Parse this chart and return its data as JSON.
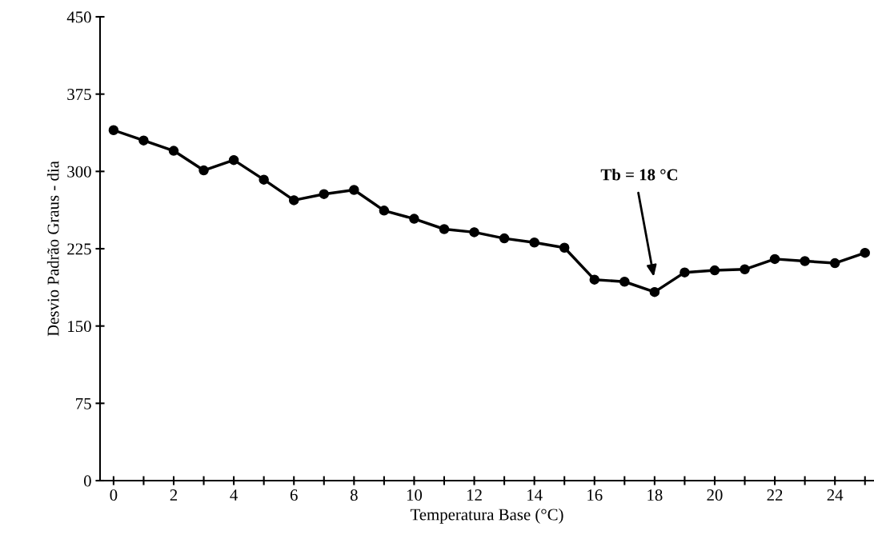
{
  "chart_data": {
    "type": "line",
    "xlabel": "Temperatura Base (°C)",
    "ylabel": "Desvio Padrão Graus - dia",
    "x": [
      0,
      1,
      2,
      3,
      4,
      5,
      6,
      7,
      8,
      9,
      10,
      11,
      12,
      13,
      14,
      15,
      16,
      17,
      18,
      19,
      20,
      21,
      22,
      23,
      24,
      25
    ],
    "series": [
      {
        "color": "#000000",
        "values": [
          340,
          330,
          320,
          301,
          311,
          292,
          272,
          278,
          282,
          262,
          254,
          244,
          241,
          235,
          231,
          226,
          195,
          193,
          183,
          202,
          204,
          205,
          215,
          213,
          211,
          221
        ]
      }
    ],
    "marker": "circle",
    "line_style": "solid",
    "grid": false,
    "legend": false,
    "xlim": [
      -0.45,
      25.3
    ],
    "xticks": [
      0,
      {
        "value": 1,
        "label": null
      },
      2,
      {
        "value": 3,
        "label": null
      },
      4,
      {
        "value": 5,
        "label": null
      },
      6,
      {
        "value": 7,
        "label": null
      },
      8,
      {
        "value": 9,
        "label": null
      },
      10,
      {
        "value": 11,
        "label": null
      },
      12,
      {
        "value": 13,
        "label": null
      },
      14,
      {
        "value": 15,
        "label": null
      },
      16,
      {
        "value": 17,
        "label": null
      },
      18,
      {
        "value": 19,
        "label": null
      },
      20,
      {
        "value": 21,
        "label": null
      },
      22,
      {
        "value": 23,
        "label": null
      },
      24,
      {
        "value": 25,
        "label": null
      }
    ],
    "ylim": [
      0,
      450
    ],
    "yticks": [
      0,
      75,
      150,
      225,
      300,
      375,
      450
    ],
    "annotations": [
      "Tb = 18 °C"
    ]
  }
}
